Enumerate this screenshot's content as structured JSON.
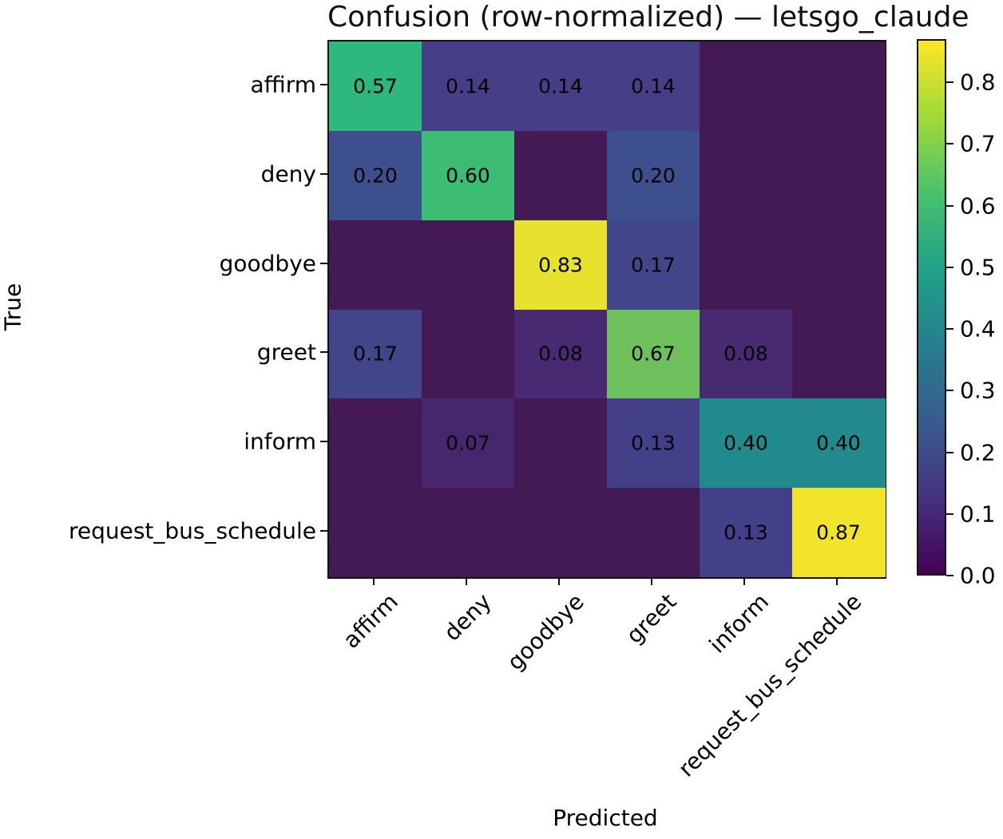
{
  "chart_data": {
    "type": "heatmap",
    "title": "Confusion (row-normalized) — letsgo_claude",
    "xlabel": "Predicted",
    "ylabel": "True",
    "row_labels": [
      "affirm",
      "deny",
      "goodbye",
      "greet",
      "inform",
      "request_bus_schedule"
    ],
    "col_labels": [
      "affirm",
      "deny",
      "goodbye",
      "greet",
      "inform",
      "request_bus_schedule"
    ],
    "matrix": [
      [
        0.57,
        0.14,
        0.14,
        0.14,
        0,
        0
      ],
      [
        0.2,
        0.6,
        0,
        0.2,
        0,
        0
      ],
      [
        0,
        0,
        0.83,
        0.17,
        0,
        0
      ],
      [
        0.17,
        0,
        0.08,
        0.67,
        0.08,
        0
      ],
      [
        0,
        0.07,
        0,
        0.13,
        0.4,
        0.4
      ],
      [
        0,
        0,
        0,
        0,
        0.13,
        0.87
      ]
    ],
    "annotation_rule": "values shown to 2 decimals, zeros hidden",
    "colormap": "viridis",
    "vmin": 0,
    "vmax": 0.87,
    "colorbar_ticks": [
      0.0,
      0.1,
      0.2,
      0.3,
      0.4,
      0.5,
      0.6,
      0.7,
      0.8
    ],
    "legend_position": "right-colorbar",
    "grid": false,
    "cell_colors": {
      "0.00": "#441a55",
      "0.07": "#46276e",
      "0.08": "#472a71",
      "0.13": "#433f88",
      "0.14": "#463f87",
      "0.17": "#41458a",
      "0.20": "#3d4f8d",
      "0.40": "#218a8d",
      "0.57": "#2eb87d",
      "0.60": "#3dbc74",
      "0.67": "#6ec05c",
      "0.83": "#e6e22e",
      "0.87": "#f2e42b"
    },
    "viridis_gradient_stops": [
      "#440154",
      "#46327e",
      "#365c8d",
      "#277f8e",
      "#1fa187",
      "#4ac16d",
      "#a0da39",
      "#fde725"
    ],
    "text_color": "#000000",
    "background_color": "#ffffff"
  }
}
